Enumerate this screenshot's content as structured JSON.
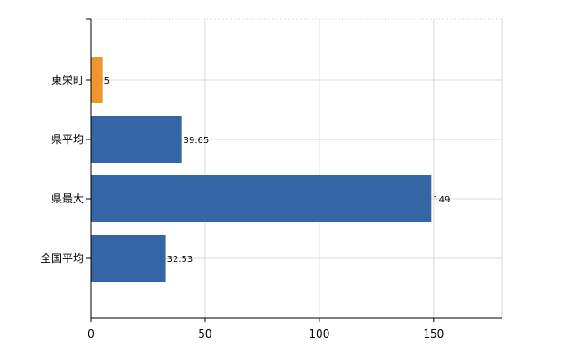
{
  "chart_data": {
    "type": "bar",
    "orientation": "horizontal",
    "categories": [
      "東栄町",
      "県平均",
      "県最大",
      "全国平均"
    ],
    "values": [
      5,
      39.65,
      149,
      32.53
    ],
    "data_labels": [
      "5",
      "39.65",
      "149",
      "32.53"
    ],
    "bar_colors": [
      "#f0962e",
      "#3465a4",
      "#3465a4",
      "#3465a4"
    ],
    "xlim": [
      0,
      180
    ],
    "x_ticks": [
      0,
      50,
      100,
      150
    ],
    "x_tick_labels": [
      "0",
      "50",
      "100",
      "150"
    ],
    "grid": true,
    "legend": "none",
    "title": "",
    "xlabel": "",
    "ylabel": ""
  }
}
